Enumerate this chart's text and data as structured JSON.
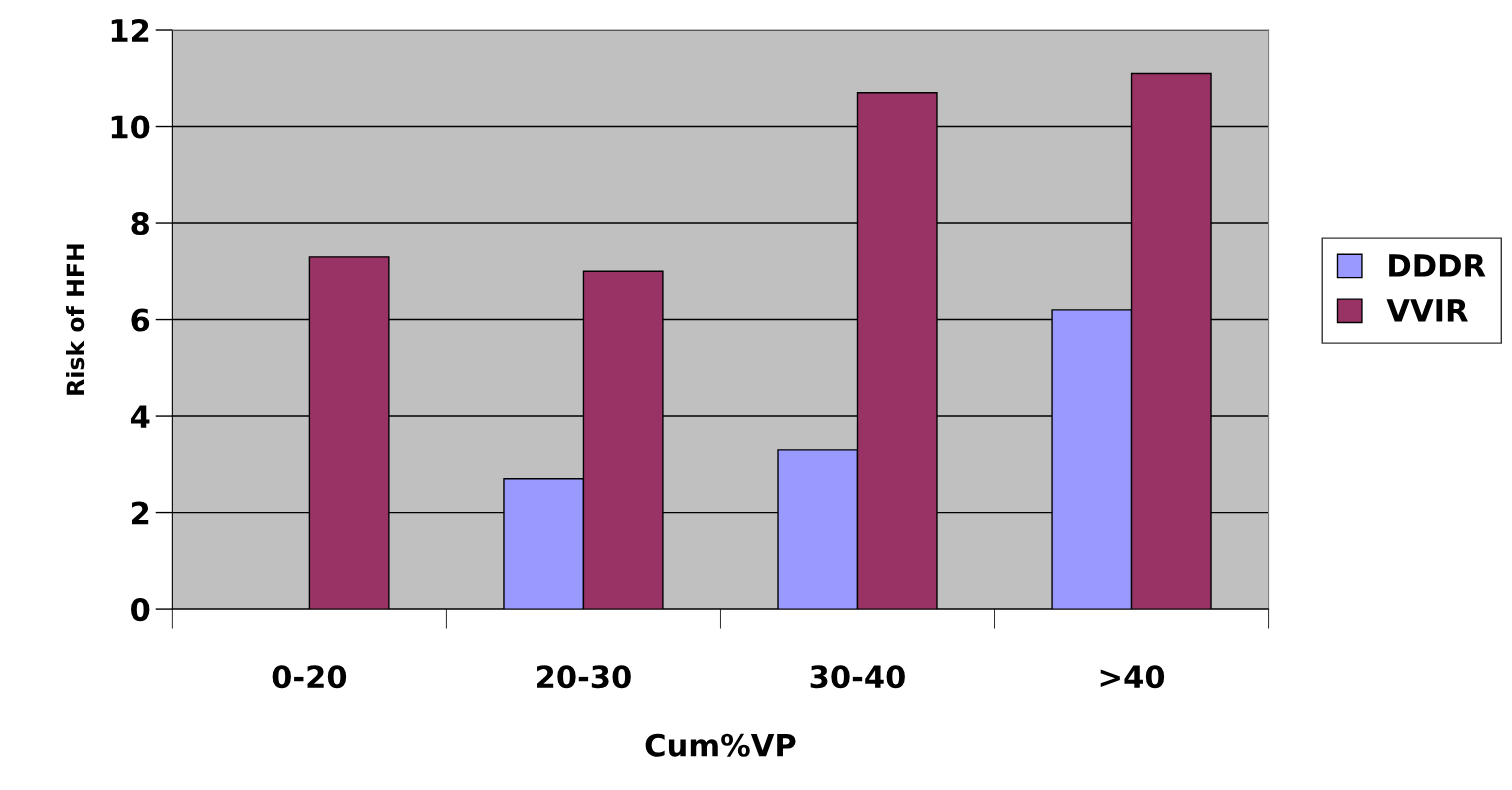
{
  "chart_data": {
    "type": "bar",
    "xlabel": "Cum%VP",
    "ylabel": "Risk of HFH",
    "categories": [
      "0-20",
      "20-30",
      "30-40",
      ">40"
    ],
    "series": [
      {
        "name": "DDDR",
        "color": "#9999ff",
        "values": [
          null,
          2.7,
          3.3,
          6.2
        ]
      },
      {
        "name": "VVIR",
        "color": "#993366",
        "values": [
          7.3,
          7.0,
          10.7,
          11.1
        ]
      }
    ],
    "ylim": [
      0,
      12
    ],
    "yticks": [
      0,
      2,
      4,
      6,
      8,
      10,
      12
    ],
    "grid": "y",
    "legend": "right"
  }
}
